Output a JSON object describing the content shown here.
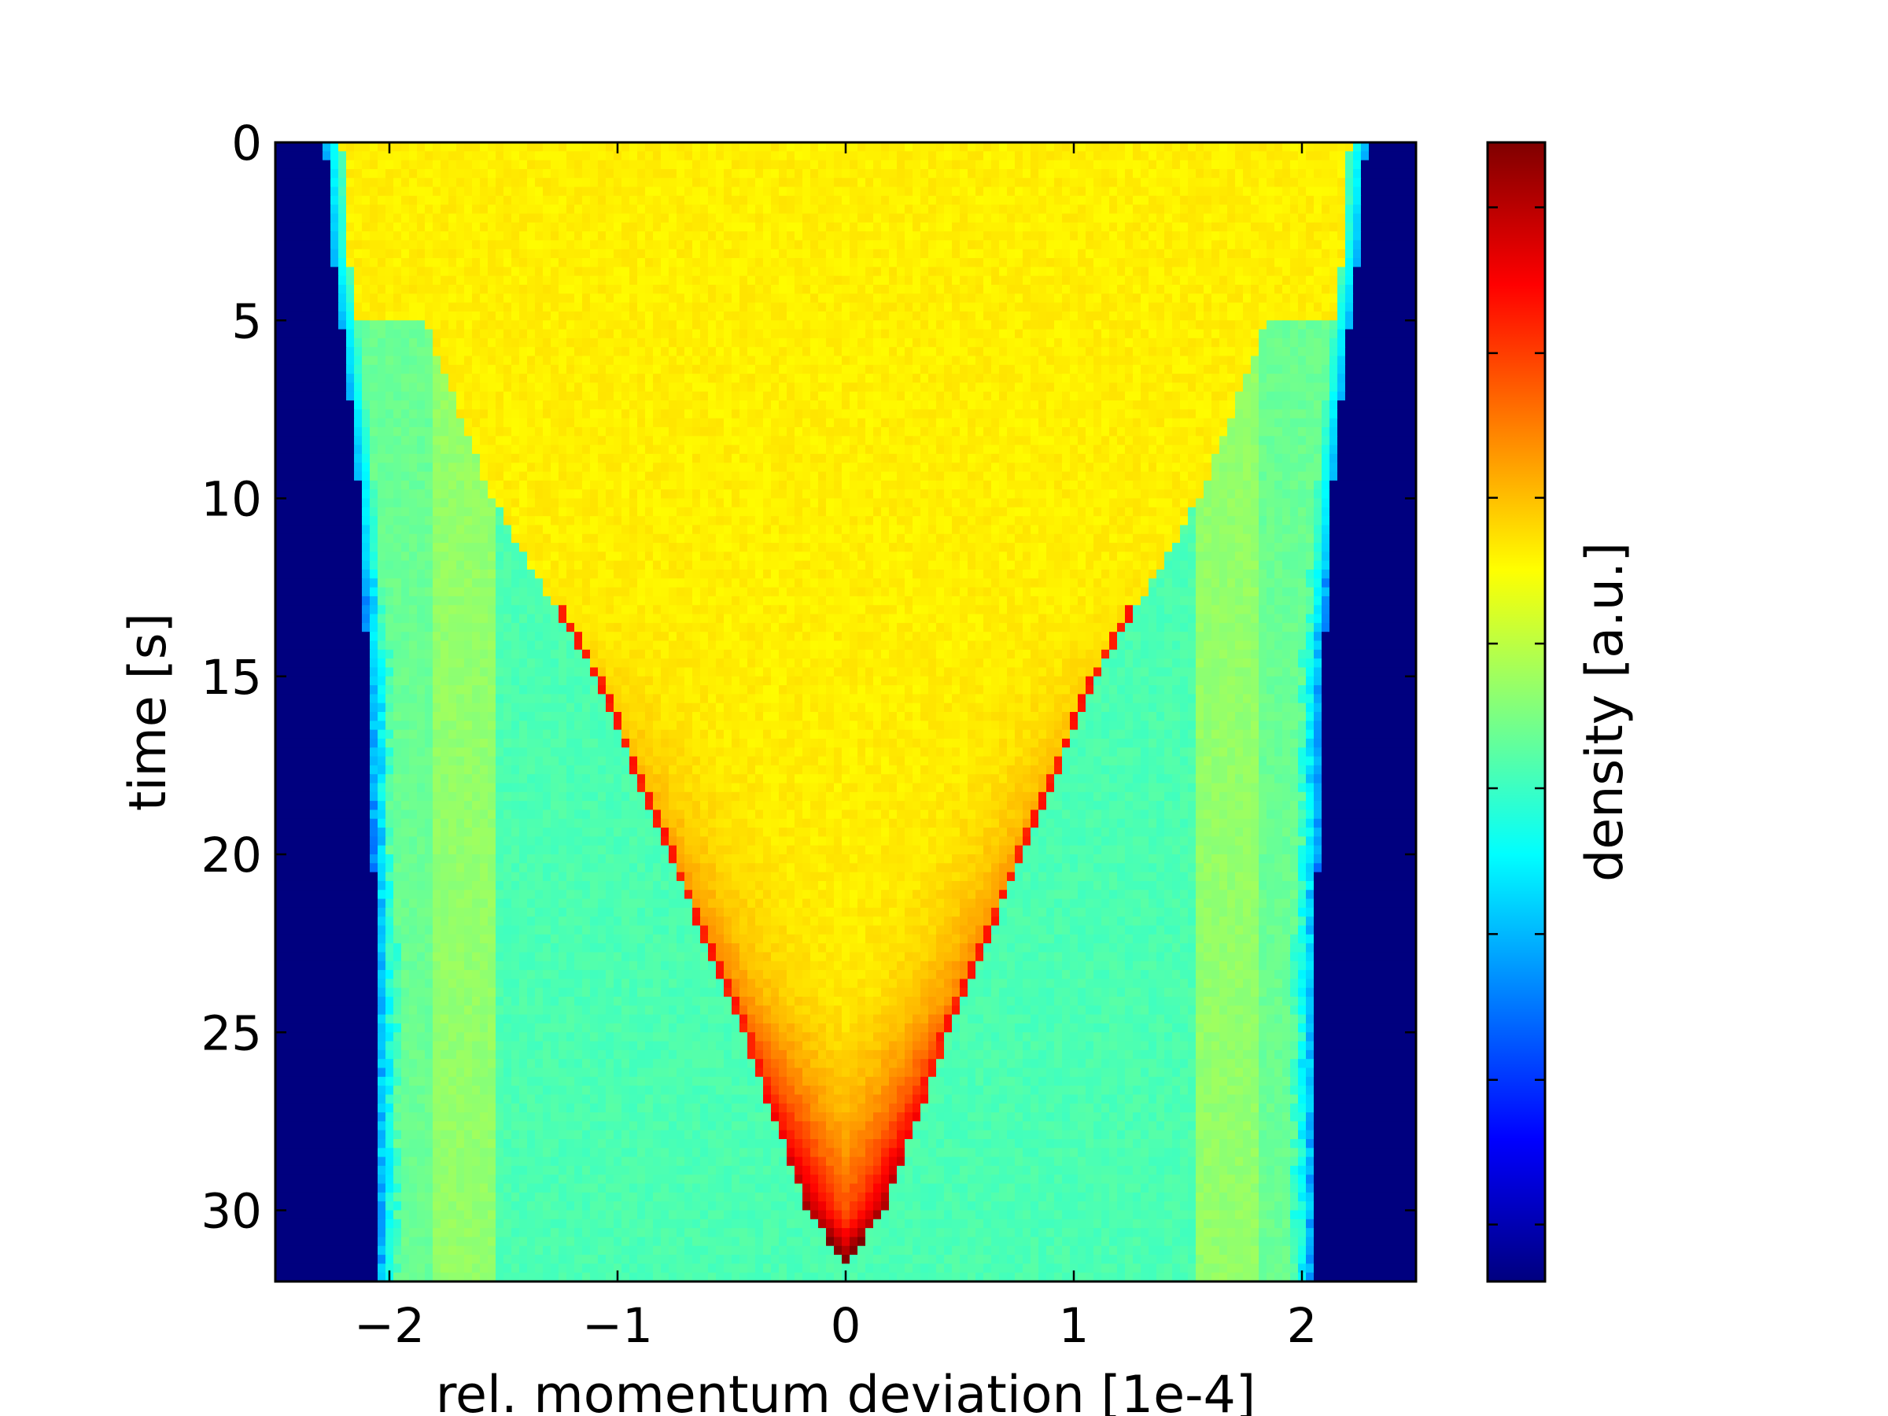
{
  "chart_data": {
    "type": "heatmap",
    "title": "",
    "xlabel": "rel. momentum deviation [1e-4]",
    "ylabel": "time [s]",
    "colorbar_label": "density [a.u.]",
    "xlim": [
      -2.5,
      2.5
    ],
    "ylim": [
      32,
      0
    ],
    "y_axis_inverted": true,
    "xticks": [
      -2,
      -1,
      0,
      1,
      2
    ],
    "xtick_labels": [
      "−2",
      "−1",
      "0",
      "1",
      "2"
    ],
    "yticks": [
      0,
      5,
      10,
      15,
      20,
      25,
      30
    ],
    "ytick_labels": [
      "0",
      "5",
      "10",
      "15",
      "20",
      "25",
      "30"
    ],
    "colormap": "jet",
    "colormap_stops": [
      "#00007f",
      "#0000ff",
      "#007fff",
      "#00ffff",
      "#7fff7f",
      "#ffff00",
      "#ff7f00",
      "#ff0000",
      "#7f0000"
    ],
    "colorbar_range": [
      0,
      1
    ],
    "colorbar_ticks": [
      0.05,
      0.177,
      0.305,
      0.433,
      0.56,
      0.688,
      0.815,
      0.943
    ],
    "grid": false,
    "beam_edge_left": [
      [
        0,
        -2.28
      ],
      [
        3,
        -2.25
      ],
      [
        5,
        -2.21
      ],
      [
        8,
        -2.16
      ],
      [
        10,
        -2.13
      ],
      [
        13,
        -2.11
      ],
      [
        15,
        -2.09
      ],
      [
        18,
        -2.08
      ],
      [
        20,
        -2.07
      ],
      [
        25,
        -2.06
      ],
      [
        32,
        -2.05
      ]
    ],
    "beam_edge_right": [
      [
        0,
        2.28
      ],
      [
        3,
        2.25
      ],
      [
        5,
        2.21
      ],
      [
        8,
        2.16
      ],
      [
        10,
        2.13
      ],
      [
        13,
        2.11
      ],
      [
        15,
        2.09
      ],
      [
        18,
        2.08
      ],
      [
        20,
        2.07
      ],
      [
        25,
        2.06
      ],
      [
        32,
        2.05
      ]
    ],
    "core_boundary_left": [
      [
        5,
        -1.85
      ],
      [
        10,
        -1.55
      ],
      [
        15,
        -1.1
      ],
      [
        20,
        -0.78
      ],
      [
        25,
        -0.45
      ],
      [
        30,
        -0.17
      ],
      [
        31.5,
        0
      ]
    ],
    "core_boundary_right": [
      [
        5,
        1.85
      ],
      [
        10,
        1.55
      ],
      [
        15,
        1.1
      ],
      [
        20,
        0.78
      ],
      [
        25,
        0.45
      ],
      [
        30,
        0.17
      ],
      [
        31.5,
        0
      ]
    ],
    "density_levels": {
      "outside_beam": 0.0,
      "beam_edge": 0.3,
      "wings": 0.45,
      "shoulder": 0.52,
      "core": 0.64,
      "core_boundary": 0.85,
      "tip": 0.92
    }
  }
}
